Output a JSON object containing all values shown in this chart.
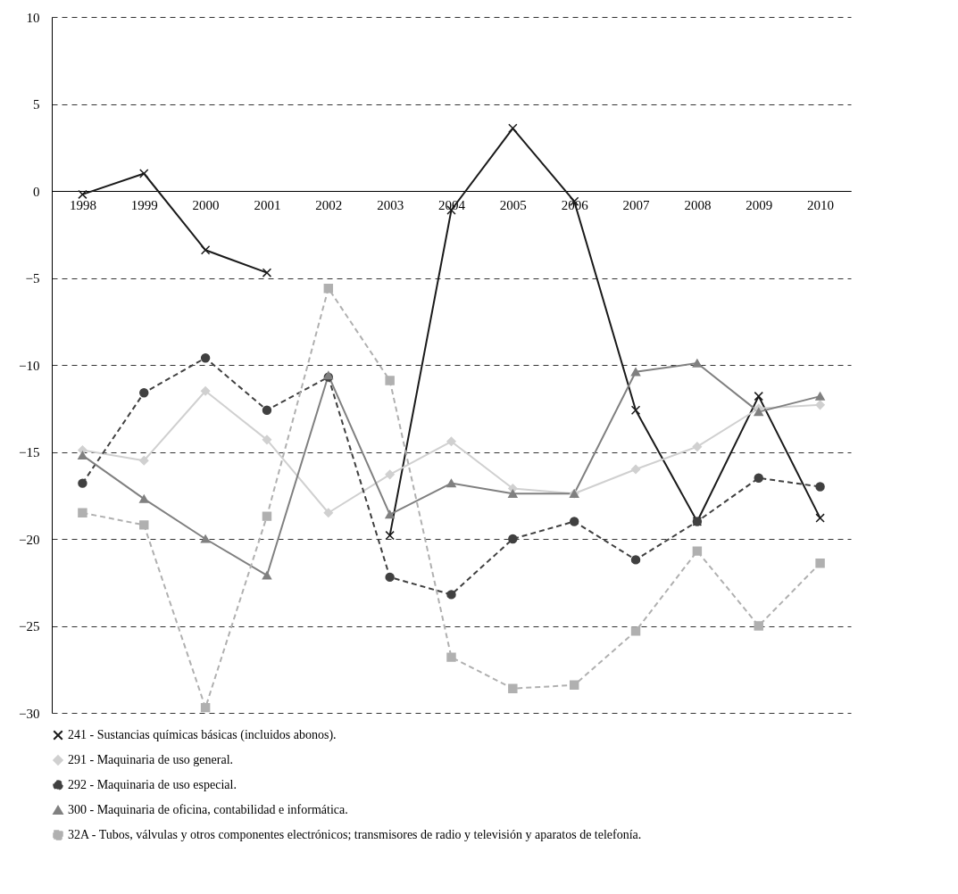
{
  "chart_data": {
    "type": "line",
    "categories": [
      "1998",
      "1999",
      "2000",
      "2001",
      "2002",
      "2003",
      "2004",
      "2005",
      "2006",
      "2007",
      "2008",
      "2009",
      "2010"
    ],
    "ylim": [
      -30,
      10
    ],
    "yticks": [
      -30,
      -25,
      -20,
      -15,
      -10,
      -5,
      0,
      5,
      10
    ],
    "grid": "y",
    "legend": "bottom",
    "series": [
      {
        "name": "241 - Sustancias químicas básicas (incluidos abonos).",
        "color": "#1a1a1a",
        "marker": "cross",
        "line_style": "solid",
        "values": [
          -0.2,
          1.0,
          -3.4,
          -4.7,
          null,
          -19.8,
          -1.1,
          3.6,
          -0.6,
          -12.6,
          -19.0,
          -11.8,
          -18.8
        ]
      },
      {
        "name": "291 - Maquinaria de uso general.",
        "color": "#d0d0d0",
        "marker": "diamond",
        "line_style": "solid",
        "values": [
          -14.9,
          -15.5,
          -11.5,
          -14.3,
          -18.5,
          -16.3,
          -14.4,
          -17.1,
          -17.4,
          -16.0,
          -14.7,
          -12.5,
          -12.3
        ]
      },
      {
        "name": "292 - Maquinaria de uso especial.",
        "color": "#404040",
        "marker": "circle",
        "line_style": "dashed",
        "values": [
          -16.8,
          -11.6,
          -9.6,
          -12.6,
          -10.7,
          -22.2,
          -23.2,
          -20.0,
          -19.0,
          -21.2,
          -19.0,
          -16.5,
          -17.0
        ]
      },
      {
        "name": "300 - Maquinaria de oficina, contabilidad e informática.",
        "color": "#808080",
        "marker": "triangle",
        "line_style": "solid",
        "values": [
          -15.2,
          -17.7,
          -20.0,
          -22.1,
          -10.6,
          -18.6,
          -16.8,
          -17.4,
          -17.4,
          -10.4,
          -9.9,
          -12.7,
          -11.8
        ]
      },
      {
        "name": "32A - Tubos, válvulas y otros componentes electrónicos; transmisores de radio y  televisión y aparatos de telefonía.",
        "color": "#b0b0b0",
        "marker": "square",
        "line_style": "dashed",
        "values": [
          -18.5,
          -19.2,
          -29.7,
          -18.7,
          -5.6,
          -10.9,
          -26.8,
          -28.6,
          -28.4,
          -25.3,
          -20.7,
          -25.0,
          -21.4
        ]
      }
    ]
  }
}
